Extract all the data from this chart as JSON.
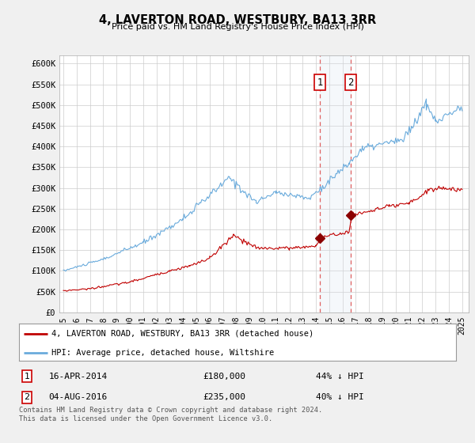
{
  "title": "4, LAVERTON ROAD, WESTBURY, BA13 3RR",
  "subtitle": "Price paid vs. HM Land Registry's House Price Index (HPI)",
  "ylabel_ticks": [
    "£0",
    "£50K",
    "£100K",
    "£150K",
    "£200K",
    "£250K",
    "£300K",
    "£350K",
    "£400K",
    "£450K",
    "£500K",
    "£550K",
    "£600K"
  ],
  "ylim": [
    0,
    620000
  ],
  "yticks": [
    0,
    50000,
    100000,
    150000,
    200000,
    250000,
    300000,
    350000,
    400000,
    450000,
    500000,
    550000,
    600000
  ],
  "hpi_color": "#6aabdc",
  "price_color": "#c00000",
  "marker_color": "#8b0000",
  "shade_color": "#dbe5f1",
  "sale1_year": 2014.29,
  "sale2_year": 2016.59,
  "sale1_price": 180000,
  "sale2_price": 235000,
  "legend_label_red": "4, LAVERTON ROAD, WESTBURY, BA13 3RR (detached house)",
  "legend_label_blue": "HPI: Average price, detached house, Wiltshire",
  "footer": "Contains HM Land Registry data © Crown copyright and database right 2024.\nThis data is licensed under the Open Government Licence v3.0.",
  "background_color": "#f0f0f0",
  "plot_background": "#ffffff"
}
